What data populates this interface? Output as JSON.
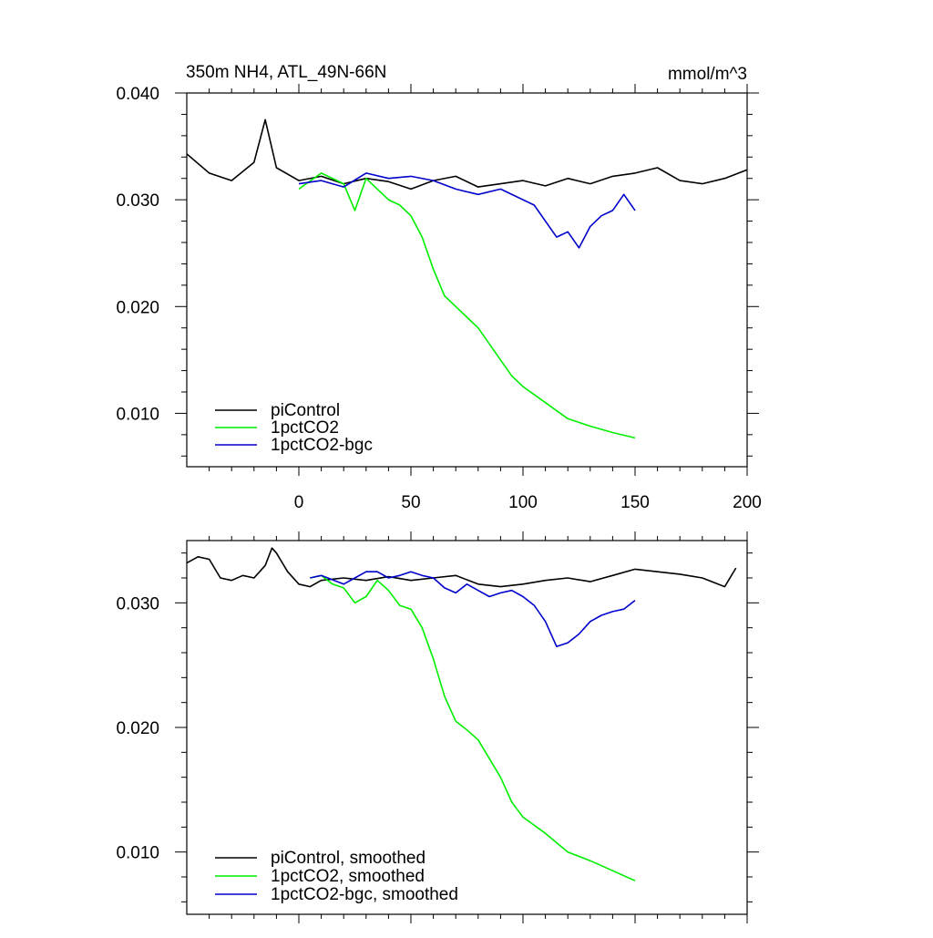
{
  "chart_data": [
    {
      "type": "line",
      "title_left": "350m NH4, ATL_49N-66N",
      "title_right": "mmol/m^3",
      "xlabel": "",
      "ylabel": "",
      "xlim": [
        -50,
        200
      ],
      "ylim": [
        0.005,
        0.04
      ],
      "xticks": [
        0,
        50,
        100,
        150,
        200
      ],
      "xtick_labels": [
        "0",
        "50",
        "100",
        "150",
        "200"
      ],
      "yticks": [
        0.01,
        0.02,
        0.03,
        0.04
      ],
      "ytick_labels": [
        "0.010",
        "0.020",
        "0.030",
        "0.040"
      ],
      "grid": false,
      "legend_position": "bottom-left",
      "series": [
        {
          "name": "piControl",
          "color": "#000000",
          "x": [
            -50,
            -40,
            -30,
            -20,
            -15,
            -10,
            0,
            10,
            20,
            30,
            40,
            50,
            60,
            70,
            80,
            90,
            100,
            110,
            120,
            130,
            140,
            150,
            160,
            170,
            180,
            190,
            200
          ],
          "y": [
            0.0343,
            0.0325,
            0.0318,
            0.0335,
            0.0375,
            0.033,
            0.0318,
            0.0322,
            0.0315,
            0.032,
            0.0317,
            0.031,
            0.0318,
            0.0322,
            0.0312,
            0.0315,
            0.0318,
            0.0313,
            0.032,
            0.0315,
            0.0322,
            0.0325,
            0.033,
            0.0318,
            0.0315,
            0.032,
            0.0328
          ]
        },
        {
          "name": "1pctCO2",
          "color": "#00ee00",
          "x": [
            0,
            10,
            20,
            25,
            30,
            35,
            40,
            45,
            50,
            55,
            60,
            65,
            70,
            75,
            80,
            85,
            90,
            95,
            100,
            110,
            120,
            130,
            140,
            150
          ],
          "y": [
            0.031,
            0.0325,
            0.0315,
            0.029,
            0.032,
            0.031,
            0.03,
            0.0295,
            0.0285,
            0.0265,
            0.0235,
            0.021,
            0.02,
            0.019,
            0.018,
            0.0165,
            0.015,
            0.0135,
            0.0125,
            0.011,
            0.0095,
            0.0088,
            0.0082,
            0.0077
          ]
        },
        {
          "name": "1pctCO2-bgc",
          "color": "#0000cc",
          "x": [
            0,
            10,
            20,
            30,
            40,
            50,
            60,
            70,
            80,
            90,
            100,
            105,
            110,
            115,
            120,
            125,
            130,
            135,
            140,
            145,
            150
          ],
          "y": [
            0.0315,
            0.0318,
            0.0312,
            0.0325,
            0.032,
            0.0322,
            0.0318,
            0.031,
            0.0305,
            0.031,
            0.03,
            0.0295,
            0.028,
            0.0265,
            0.027,
            0.0255,
            0.0275,
            0.0285,
            0.029,
            0.0305,
            0.029
          ]
        }
      ]
    },
    {
      "type": "line",
      "title_left": "",
      "title_right": "",
      "xlabel": "",
      "ylabel": "",
      "xlim": [
        -50,
        200
      ],
      "ylim": [
        0.005,
        0.035
      ],
      "xticks": [
        0,
        50,
        100,
        150,
        200
      ],
      "xtick_labels": [],
      "yticks": [
        0.01,
        0.02,
        0.03
      ],
      "ytick_labels": [
        "0.010",
        "0.020",
        "0.030"
      ],
      "grid": false,
      "legend_position": "bottom-left",
      "series": [
        {
          "name": "piControl, smoothed",
          "color": "#000000",
          "x": [
            -50,
            -45,
            -40,
            -35,
            -30,
            -25,
            -20,
            -15,
            -12,
            -10,
            -5,
            0,
            5,
            10,
            20,
            30,
            40,
            50,
            60,
            70,
            80,
            90,
            100,
            110,
            120,
            130,
            140,
            150,
            160,
            170,
            180,
            190,
            195
          ],
          "y": [
            0.0332,
            0.0337,
            0.0335,
            0.032,
            0.0318,
            0.0322,
            0.032,
            0.033,
            0.0344,
            0.034,
            0.0325,
            0.0315,
            0.0313,
            0.0318,
            0.032,
            0.0318,
            0.0321,
            0.0318,
            0.032,
            0.0322,
            0.0315,
            0.0313,
            0.0315,
            0.0318,
            0.032,
            0.0317,
            0.0322,
            0.0327,
            0.0325,
            0.0323,
            0.032,
            0.0313,
            0.0328
          ]
        },
        {
          "name": "1pctCO2, smoothed",
          "color": "#00ee00",
          "x": [
            5,
            10,
            15,
            20,
            25,
            30,
            35,
            40,
            45,
            50,
            55,
            60,
            65,
            70,
            75,
            80,
            85,
            90,
            95,
            100,
            110,
            120,
            130,
            140,
            150
          ],
          "y": [
            0.032,
            0.0322,
            0.0315,
            0.0312,
            0.03,
            0.0305,
            0.0318,
            0.031,
            0.0298,
            0.0295,
            0.028,
            0.0255,
            0.0225,
            0.0205,
            0.0198,
            0.019,
            0.0175,
            0.016,
            0.014,
            0.0128,
            0.0115,
            0.01,
            0.0093,
            0.0085,
            0.0077
          ]
        },
        {
          "name": "1pctCO2-bgc, smoothed",
          "color": "#0000cc",
          "x": [
            5,
            10,
            20,
            25,
            30,
            35,
            40,
            45,
            50,
            55,
            60,
            65,
            70,
            75,
            80,
            85,
            90,
            95,
            100,
            105,
            110,
            115,
            120,
            125,
            130,
            135,
            140,
            145,
            150
          ],
          "y": [
            0.032,
            0.0322,
            0.0315,
            0.032,
            0.0325,
            0.0325,
            0.032,
            0.0322,
            0.0325,
            0.0322,
            0.032,
            0.0312,
            0.0308,
            0.0315,
            0.031,
            0.0305,
            0.0308,
            0.031,
            0.0305,
            0.0298,
            0.0285,
            0.0265,
            0.0268,
            0.0275,
            0.0285,
            0.029,
            0.0293,
            0.0295,
            0.0302
          ]
        }
      ]
    }
  ]
}
